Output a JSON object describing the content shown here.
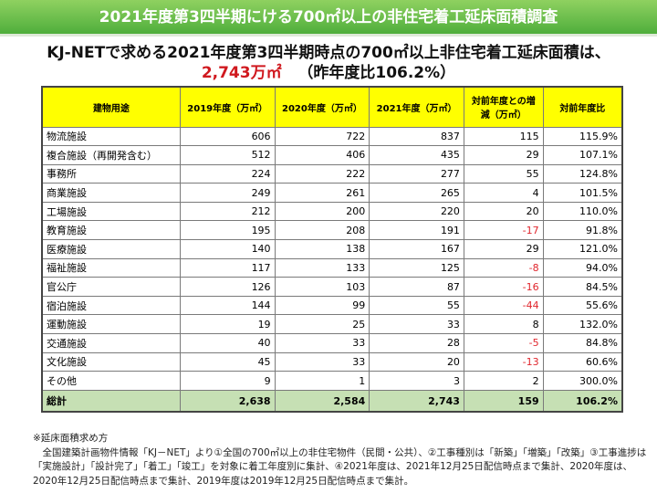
{
  "banner_title": "2021年度第3四半期にける700㎡以上の非住宅着工延床面積調査",
  "headline": {
    "line1": "KJ-NETで求める2021年度第3四半期時点の700㎡以上非住宅着工延床面積は、",
    "value": "2,743万㎡",
    "ratio": "（昨年度比106.2%）"
  },
  "table": {
    "headers": [
      "建物用途",
      "2019年度（万㎡）",
      "2020年度（万㎡）",
      "2021年度（万㎡）",
      "対前年度との増減（万㎡）",
      "対前年度比"
    ],
    "rows": [
      [
        "物流施設",
        "606",
        "722",
        "837",
        "115",
        "115.9%"
      ],
      [
        "複合施設（再開発含む）",
        "512",
        "406",
        "435",
        "29",
        "107.1%"
      ],
      [
        "事務所",
        "224",
        "222",
        "277",
        "55",
        "124.8%"
      ],
      [
        "商業施設",
        "249",
        "261",
        "265",
        "4",
        "101.5%"
      ],
      [
        "工場施設",
        "212",
        "200",
        "220",
        "20",
        "110.0%"
      ],
      [
        "教育施設",
        "195",
        "208",
        "191",
        "-17",
        "91.8%"
      ],
      [
        "医療施設",
        "140",
        "138",
        "167",
        "29",
        "121.0%"
      ],
      [
        "福祉施設",
        "117",
        "133",
        "125",
        "-8",
        "94.0%"
      ],
      [
        "官公庁",
        "126",
        "103",
        "87",
        "-16",
        "84.5%"
      ],
      [
        "宿泊施設",
        "144",
        "99",
        "55",
        "-44",
        "55.6%"
      ],
      [
        "運動施設",
        "19",
        "25",
        "33",
        "8",
        "132.0%"
      ],
      [
        "交通施設",
        "40",
        "33",
        "28",
        "-5",
        "84.8%"
      ],
      [
        "文化施設",
        "45",
        "33",
        "20",
        "-13",
        "60.6%"
      ],
      [
        "その他",
        "9",
        "1",
        "3",
        "2",
        "300.0%"
      ]
    ],
    "total": [
      "総計",
      "2,638",
      "2,584",
      "2,743",
      "159",
      "106.2%"
    ]
  },
  "note": {
    "title": "※延床面積求め方",
    "body": "全国建築計画物件情報「KJ－NET」より①全国の700㎡以上の非住宅物件（民間・公共）、②工事種別は「新築」「増築」「改築」③工事進捗は「実施設計」「設計完了」「着工」「竣工」を対象に着工年度別に集計、④2021年度は、2021年12月25日配信時点まで集計、2020年度は、2020年12月25日配信時点まで集計、2019年度は2019年12月25日配信時点まで集計。"
  },
  "colors": {
    "banner": "#5cb844",
    "header": "#ffff00",
    "total": "#c6e0b4",
    "negative": "#e0262d",
    "highlight": "#d0191f"
  }
}
